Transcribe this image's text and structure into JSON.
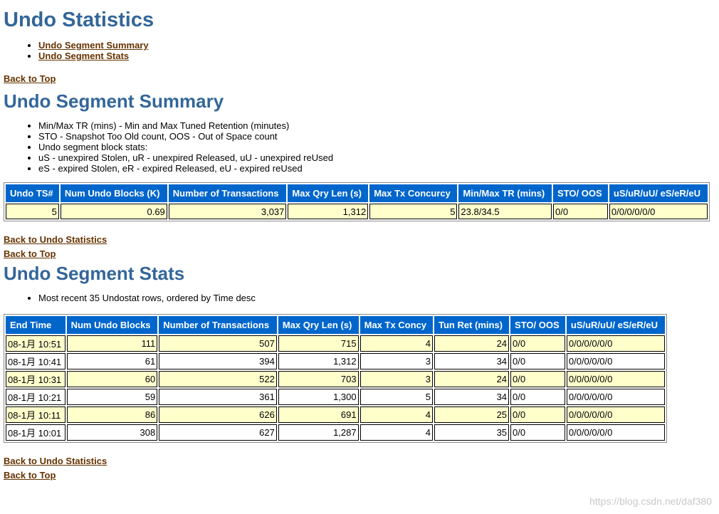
{
  "page_title": "Undo Statistics",
  "toc": [
    {
      "label": "Undo Segment Summary"
    },
    {
      "label": "Undo Segment Stats"
    }
  ],
  "back_to_top": "Back to Top",
  "back_to_undo": "Back to Undo Statistics",
  "summary": {
    "title": "Undo Segment Summary",
    "notes": [
      "Min/Max TR (mins) - Min and Max Tuned Retention (minutes)",
      "STO - Snapshot Too Old count, OOS - Out of Space count",
      "Undo segment block stats:",
      "uS - unexpired Stolen, uR - unexpired Released, uU - unexpired reUsed",
      "eS - expired Stolen, eR - expired Released, eU - expired reUsed"
    ],
    "headers": [
      "Undo TS#",
      "Num Undo Blocks (K)",
      "Number of Transactions",
      "Max Qry Len (s)",
      "Max Tx Concurcy",
      "Min/Max TR (mins)",
      "STO/ OOS",
      "uS/uR/uU/ eS/eR/eU"
    ],
    "rows": [
      [
        "5",
        "0.69",
        "3,037",
        "1,312",
        "5",
        "23.8/34.5",
        "0/0",
        "0/0/0/0/0/0"
      ]
    ]
  },
  "stats": {
    "title": "Undo Segment Stats",
    "notes": [
      "Most recent 35 Undostat rows, ordered by Time desc"
    ],
    "headers": [
      "End Time",
      "Num Undo Blocks",
      "Number of Transactions",
      "Max Qry Len (s)",
      "Max Tx Concy",
      "Tun Ret (mins)",
      "STO/ OOS",
      "uS/uR/uU/ eS/eR/eU"
    ],
    "rows": [
      [
        "08-1月 10:51",
        "111",
        "507",
        "715",
        "4",
        "24",
        "0/0",
        "0/0/0/0/0/0"
      ],
      [
        "08-1月 10:41",
        "61",
        "394",
        "1,312",
        "3",
        "34",
        "0/0",
        "0/0/0/0/0/0"
      ],
      [
        "08-1月 10:31",
        "60",
        "522",
        "703",
        "3",
        "24",
        "0/0",
        "0/0/0/0/0/0"
      ],
      [
        "08-1月 10:21",
        "59",
        "361",
        "1,300",
        "5",
        "34",
        "0/0",
        "0/0/0/0/0/0"
      ],
      [
        "08-1月 10:11",
        "86",
        "626",
        "691",
        "4",
        "25",
        "0/0",
        "0/0/0/0/0/0"
      ],
      [
        "08-1月 10:01",
        "308",
        "627",
        "1,287",
        "4",
        "35",
        "0/0",
        "0/0/0/0/0/0"
      ]
    ]
  },
  "watermark": "https://blog.csdn.net/daf380",
  "colors": {
    "heading": "#336699",
    "header_bg": "#0066CC",
    "odd_row": "#FFFFCC",
    "link": "#663300"
  }
}
